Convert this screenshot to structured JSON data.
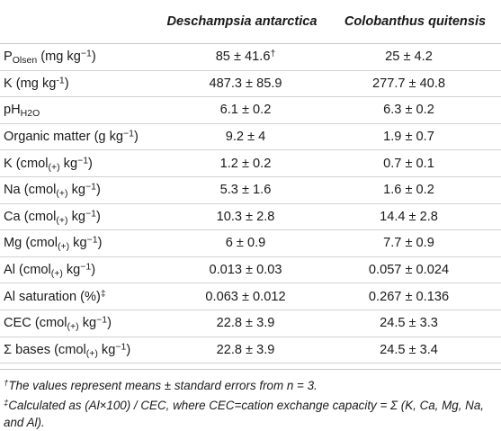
{
  "header": {
    "col1": "",
    "col2": "Deschampsia antarctica",
    "col3": "Colobanthus quitensis"
  },
  "rows": [
    {
      "pre": "P",
      "sub": "Olsen",
      "mid": " (mg kg",
      "sup": "−1",
      "post": ")",
      "v1": "85 ± 41.6",
      "v1_mark": "†",
      "v2": "25 ± 4.2"
    },
    {
      "pre": "K (mg kg",
      "sub": "",
      "mid": "",
      "sup": "-1",
      "post": ")",
      "v1": "487.3 ± 85.9",
      "v1_mark": "",
      "v2": "277.7 ± 40.8"
    },
    {
      "pre": "pH",
      "sub": "H2O",
      "mid": "",
      "sup": "",
      "post": "",
      "v1": "6.1 ± 0.2",
      "v1_mark": "",
      "v2": "6.3 ± 0.2"
    },
    {
      "pre": "Organic matter (g kg",
      "sub": "",
      "mid": "",
      "sup": "−1",
      "post": ")",
      "v1": "9.2 ± 4",
      "v1_mark": "",
      "v2": "1.9 ± 0.7"
    },
    {
      "pre": "K (cmol",
      "sub": "(+)",
      "mid": " kg",
      "sup": "−1",
      "post": ")",
      "v1": "1.2 ± 0.2",
      "v1_mark": "",
      "v2": "0.7 ± 0.1"
    },
    {
      "pre": "Na (cmol",
      "sub": "(+)",
      "mid": " kg",
      "sup": "−1",
      "post": ")",
      "v1": "5.3 ± 1.6",
      "v1_mark": "",
      "v2": "1.6 ± 0.2"
    },
    {
      "pre": "Ca (cmol",
      "sub": "(+)",
      "mid": " kg",
      "sup": "−1",
      "post": ")",
      "v1": "10.3 ± 2.8",
      "v1_mark": "",
      "v2": "14.4 ± 2.8"
    },
    {
      "pre": "Mg (cmol",
      "sub": "(+)",
      "mid": " kg",
      "sup": "−1",
      "post": ")",
      "v1": "6 ± 0.9",
      "v1_mark": "",
      "v2": "7.7 ± 0.9"
    },
    {
      "pre": "Al (cmol",
      "sub": "(+)",
      "mid": " kg",
      "sup": "−1",
      "post": ")",
      "v1": "0.013 ± 0.03",
      "v1_mark": "",
      "v2": "0.057 ± 0.024"
    },
    {
      "pre": "Al saturation (%)",
      "sub": "",
      "mid": "",
      "sup": "‡",
      "post": "",
      "v1": "0.063 ± 0.012",
      "v1_mark": "",
      "v2": "0.267 ± 0.136"
    },
    {
      "pre": "CEC (cmol",
      "sub": "(+)",
      "mid": " kg",
      "sup": "−1",
      "post": ")",
      "v1": "22.8 ± 3.9",
      "v1_mark": "",
      "v2": "24.5 ± 3.3"
    },
    {
      "pre": "Σ bases (cmol",
      "sub": "(+)",
      "mid": " kg",
      "sup": "−1",
      "post": ")",
      "v1": "22.8 ± 3.9",
      "v1_mark": "",
      "v2": "24.5 ± 3.4"
    }
  ],
  "footnotes": [
    {
      "mark": "†",
      "text": "The values represent means ± standard errors from n = 3."
    },
    {
      "mark": "‡",
      "text": "Calculated as (Al×100) / CEC, where CEC=cation exchange capacity = Σ (K, Ca, Mg, Na, and Al)."
    }
  ]
}
